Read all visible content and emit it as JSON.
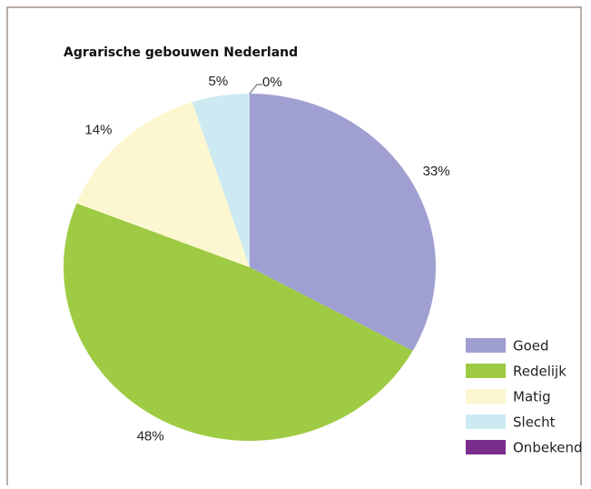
{
  "chart_data": {
    "type": "pie",
    "title": "Agrarische gebouwen Nederland",
    "categories": [
      "Goed",
      "Redelijk",
      "Matig",
      "Slecht",
      "Onbekend"
    ],
    "values": [
      33,
      48,
      14,
      5,
      0
    ],
    "value_labels": [
      "33%",
      "48%",
      "14%",
      "5%",
      "0%"
    ],
    "colors": [
      "#a09fd1",
      "#9ecb43",
      "#fcf7d0",
      "#cdeaf2",
      "#7b2d8b"
    ],
    "legend": "lower right"
  }
}
